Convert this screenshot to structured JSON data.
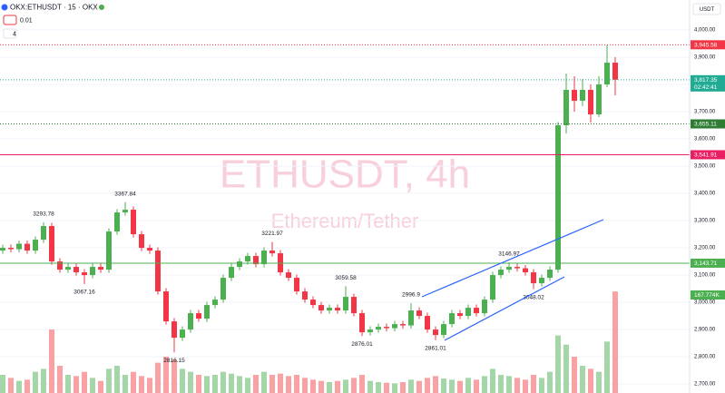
{
  "chart_data": {
    "type": "candlestick",
    "symbol": "OKX:ETHUSDT · 15 · OKX",
    "input_step": "0.01",
    "input_count": "4",
    "currency": "USDT",
    "watermark_title": "ETHUSDT, 4h",
    "watermark_subtitle": "Ethereum/Tether",
    "up_color": "#4caf50",
    "down_color": "#f23645",
    "ylim": [
      2667,
      4110
    ],
    "yticks": [
      {
        "value": 2700,
        "label": "2,700.00"
      },
      {
        "value": 2800,
        "label": "2,800.00"
      },
      {
        "value": 2900,
        "label": "2,900.00"
      },
      {
        "value": 3000,
        "label": "3,000.00"
      },
      {
        "value": 3100,
        "label": "3,100.00"
      },
      {
        "value": 3200,
        "label": "3,200.00"
      },
      {
        "value": 3300,
        "label": "3,300.00"
      },
      {
        "value": 3400,
        "label": "3,400.00"
      },
      {
        "value": 3500,
        "label": "3,500.00"
      },
      {
        "value": 3600,
        "label": "3,600.00"
      },
      {
        "value": 3700,
        "label": "3,700.00"
      },
      {
        "value": 3800,
        "label": "3,800.00"
      },
      {
        "value": 3900,
        "label": "3,900.00"
      },
      {
        "value": 4000,
        "label": "4,000.00"
      }
    ],
    "open": [
      3190,
      3200,
      3195,
      3215,
      3190,
      3230,
      3280,
      3150,
      3120,
      3130,
      3110,
      3100,
      3130,
      3120,
      3260,
      3330,
      3340,
      3250,
      3200,
      3190,
      3040,
      2930,
      2870,
      2900,
      2960,
      2940,
      2990,
      3010,
      3090,
      3130,
      3150,
      3170,
      3140,
      3190,
      3180,
      3110,
      3090,
      3040,
      3010,
      2990,
      2970,
      2980,
      2970,
      3020,
      2960,
      2890,
      2900,
      2910,
      2905,
      2920,
      2915,
      2970,
      2950,
      2900,
      2880,
      2920,
      2960,
      2950,
      2980,
      2960,
      3010,
      3100,
      3120,
      3130,
      3125,
      3110,
      3070,
      3090,
      3120,
      3650,
      3780,
      3740,
      3780,
      3690,
      3800,
      3880
    ],
    "high": [
      3212,
      3212,
      3227,
      3227,
      3242,
      3293.78,
      3292,
      3162,
      3142,
      3142,
      3122,
      3142,
      3142,
      3272,
      3342,
      3367.84,
      3352,
      3262,
      3212,
      3202,
      3052,
      2942,
      2912,
      2972,
      2972,
      3002,
      3022,
      3102,
      3142,
      3162,
      3182,
      3182,
      3202,
      3221.97,
      3192,
      3122,
      3102,
      3052,
      3022,
      3002,
      2992,
      2992,
      3059.58,
      3032,
      2972,
      2912,
      2922,
      2922,
      2932,
      2932,
      2996.9,
      2982,
      2962,
      2912,
      2932,
      2972,
      2972,
      2992,
      2992,
      3022,
      3112,
      3132,
      3146.97,
      3142,
      3137,
      3122,
      3102,
      3132,
      3662,
      3840,
      3830,
      3820,
      3800,
      3830,
      3945.58,
      3900
    ],
    "low": [
      3178,
      3183,
      3183,
      3178,
      3178,
      3218,
      3138,
      3108,
      3108,
      3098,
      3067.16,
      3088,
      3108,
      3108,
      3248,
      3318,
      3238,
      3188,
      3178,
      3028,
      2918,
      2816.15,
      2858,
      2888,
      2928,
      2928,
      2978,
      2998,
      3078,
      3118,
      3138,
      3128,
      3128,
      3168,
      3098,
      3078,
      3028,
      2998,
      2978,
      2958,
      2958,
      2958,
      2958,
      2948,
      2876.01,
      2878,
      2888,
      2893,
      2893,
      2903,
      2903,
      2938,
      2888,
      2861.01,
      2868,
      2908,
      2938,
      2938,
      2948,
      2948,
      2998,
      3088,
      3108,
      3113,
      3098,
      3048.02,
      3058,
      3078,
      3108,
      3620,
      3700,
      3720,
      3660,
      3680,
      3790,
      3760
    ],
    "close": [
      3200,
      3195,
      3215,
      3190,
      3230,
      3280,
      3150,
      3120,
      3130,
      3110,
      3100,
      3130,
      3120,
      3260,
      3330,
      3340,
      3250,
      3200,
      3190,
      3040,
      2930,
      2870,
      2900,
      2960,
      2940,
      2990,
      3010,
      3090,
      3130,
      3150,
      3170,
      3140,
      3190,
      3180,
      3110,
      3090,
      3040,
      3010,
      2990,
      2970,
      2980,
      2970,
      3020,
      2960,
      2890,
      2900,
      2910,
      2905,
      2920,
      2915,
      2970,
      2950,
      2900,
      2880,
      2920,
      2960,
      2950,
      2980,
      2960,
      3010,
      3100,
      3120,
      3130,
      3125,
      3110,
      3070,
      3090,
      3120,
      3650,
      3780,
      3740,
      3780,
      3690,
      3800,
      3880,
      3817.35
    ],
    "volume": [
      30000,
      25000,
      20000,
      22000,
      35000,
      40000,
      105000,
      45000,
      30000,
      28000,
      35000,
      25000,
      20000,
      40000,
      45000,
      30000,
      35000,
      28000,
      25000,
      50000,
      60000,
      55000,
      40000,
      35000,
      30000,
      28000,
      30000,
      35000,
      32000,
      28000,
      25000,
      30000,
      35000,
      30000,
      32000,
      28000,
      30000,
      25000,
      22000,
      20000,
      18000,
      20000,
      22000,
      25000,
      30000,
      20000,
      18000,
      17000,
      16000,
      18000,
      22000,
      20000,
      25000,
      28000,
      24000,
      22000,
      20000,
      25000,
      22000,
      28000,
      40000,
      30000,
      28000,
      25000,
      22000,
      30000,
      25000,
      35000,
      95000,
      80000,
      60000,
      45000,
      40000,
      35000,
      85000,
      167774
    ],
    "volume_last_label": "167.774K",
    "annotations": [
      3293.78,
      3367.84,
      3067.16,
      2816.15,
      3221.97,
      3059.58,
      2876.01,
      2996.9,
      2861.01,
      3146.97,
      3048.02
    ],
    "price_lines": [
      {
        "value": 3945.58,
        "label": "3,945.58",
        "color": "#f23645",
        "style": "dotted"
      },
      {
        "value": 3817.35,
        "label": "3,817.35",
        "countdown": "02:42:41",
        "color": "#22ab94",
        "style": "dotted"
      },
      {
        "value": 3655.11,
        "label": "3,655.11",
        "color": "#2e7d32",
        "style": "dotted"
      },
      {
        "value": 3541.91,
        "label": "3,541.91",
        "color": "#e91e63",
        "style": "solid"
      },
      {
        "value": 3143.71,
        "label": "3,143.71",
        "color": "#4caf50",
        "style": "solid"
      }
    ]
  }
}
